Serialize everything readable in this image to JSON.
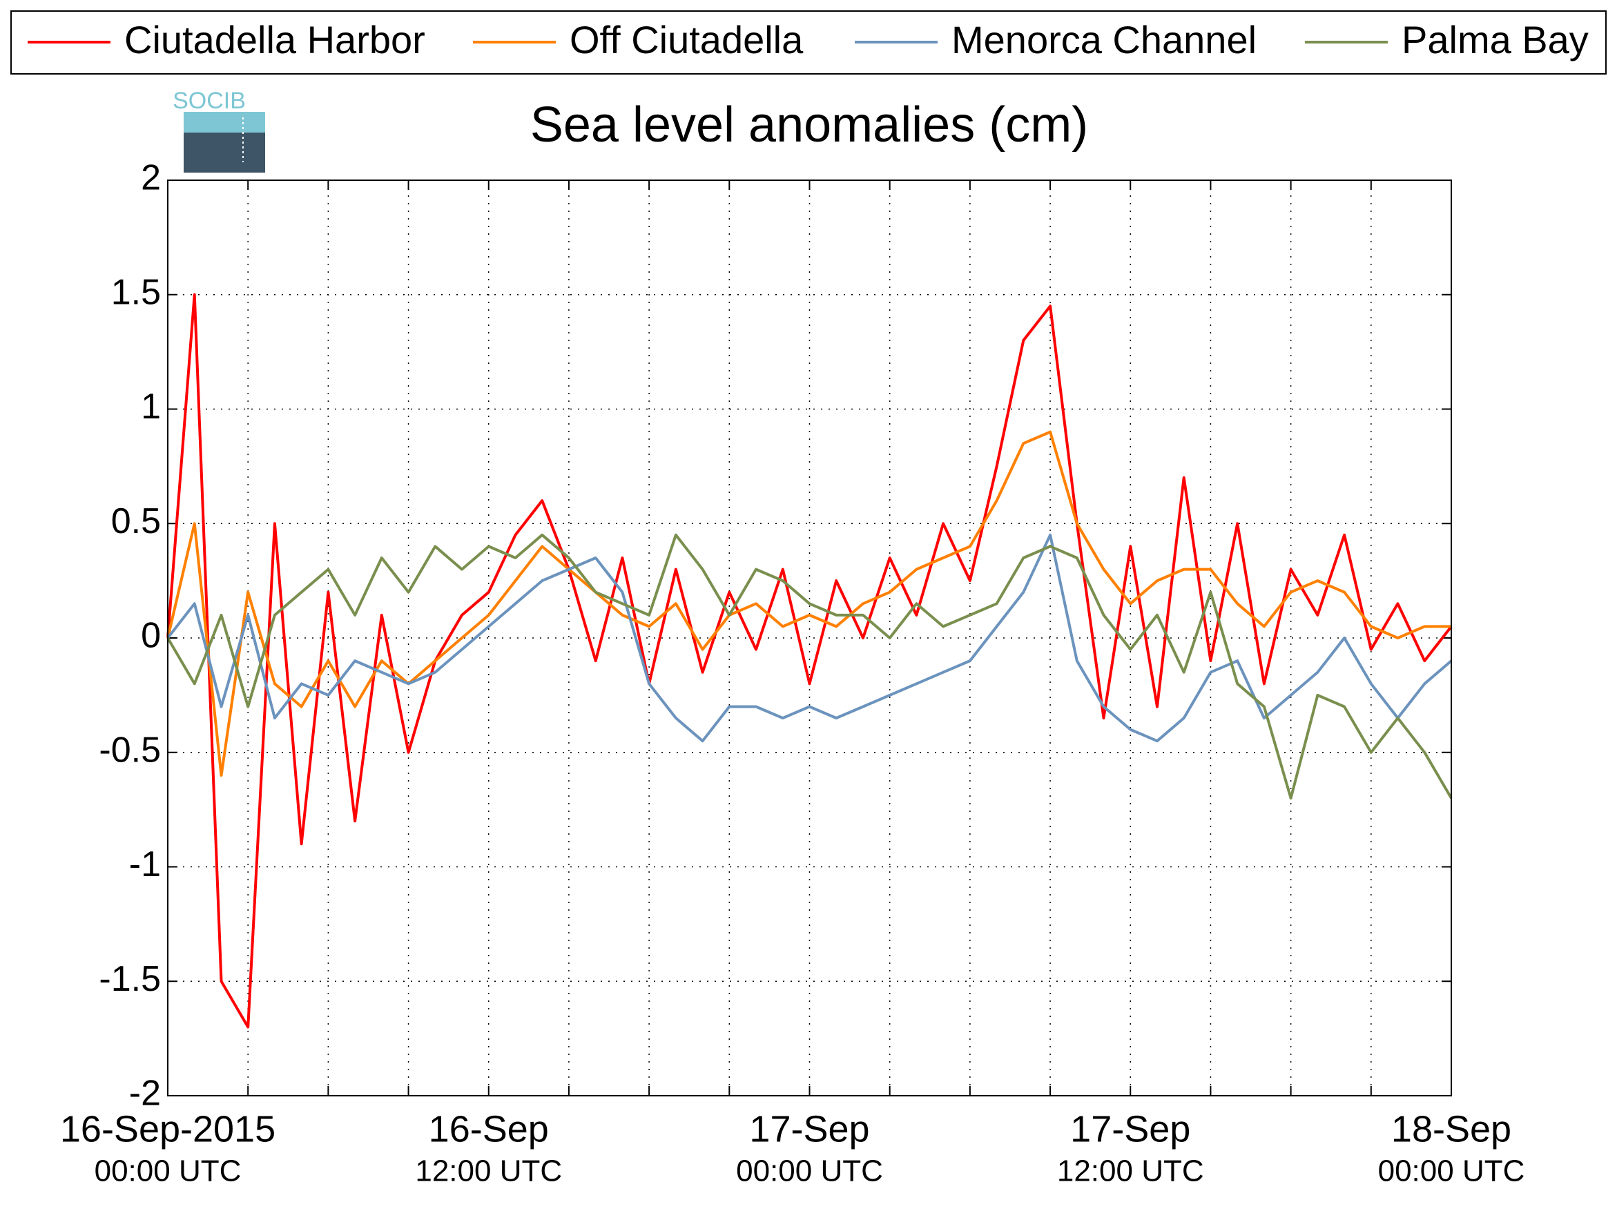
{
  "chart_data": {
    "type": "line",
    "title": "Sea level anomalies (cm)",
    "logo_text": "SOCIB",
    "x": [
      0,
      1,
      2,
      3,
      4,
      5,
      6,
      7,
      8,
      9,
      10,
      11,
      12,
      13,
      14,
      15,
      16,
      17,
      18,
      19,
      20,
      21,
      22,
      23,
      24,
      25,
      26,
      27,
      28,
      29,
      30,
      31,
      32,
      33,
      34,
      35,
      36,
      37,
      38,
      39,
      40,
      41,
      42,
      43,
      44,
      45,
      46,
      47,
      48
    ],
    "series": [
      {
        "name": "Ciutadella Harbor",
        "color": "#ff0000",
        "values": [
          0,
          1.5,
          -1.5,
          -1.7,
          0.5,
          -0.9,
          0.2,
          -0.8,
          0.1,
          -0.5,
          -0.1,
          0.1,
          0.2,
          0.45,
          0.6,
          0.3,
          -0.1,
          0.35,
          -0.2,
          0.3,
          -0.15,
          0.2,
          -0.05,
          0.3,
          -0.2,
          0.25,
          0,
          0.35,
          0.1,
          0.5,
          0.25,
          0.75,
          1.3,
          1.45,
          0.5,
          -0.35,
          0.4,
          -0.3,
          0.7,
          -0.1,
          0.5,
          -0.2,
          0.3,
          0.1,
          0.45,
          -0.05,
          0.15,
          -0.1,
          0.05
        ]
      },
      {
        "name": "Off Ciutadella",
        "color": "#ff8000",
        "values": [
          0,
          0.5,
          -0.6,
          0.2,
          -0.2,
          -0.3,
          -0.1,
          -0.3,
          -0.1,
          -0.2,
          -0.1,
          0,
          0.1,
          0.25,
          0.4,
          0.3,
          0.2,
          0.1,
          0.05,
          0.15,
          -0.05,
          0.1,
          0.15,
          0.05,
          0.1,
          0.05,
          0.15,
          0.2,
          0.3,
          0.35,
          0.4,
          0.6,
          0.85,
          0.9,
          0.5,
          0.3,
          0.15,
          0.25,
          0.3,
          0.3,
          0.15,
          0.05,
          0.2,
          0.25,
          0.2,
          0.05,
          0,
          0.05,
          0.05
        ]
      },
      {
        "name": "Menorca Channel",
        "color": "#6b93bd",
        "values": [
          0,
          0.15,
          -0.3,
          0.1,
          -0.35,
          -0.2,
          -0.25,
          -0.1,
          -0.15,
          -0.2,
          -0.15,
          -0.05,
          0.05,
          0.15,
          0.25,
          0.3,
          0.35,
          0.2,
          -0.2,
          -0.35,
          -0.45,
          -0.3,
          -0.3,
          -0.35,
          -0.3,
          -0.35,
          -0.3,
          -0.25,
          -0.2,
          -0.15,
          -0.1,
          0.05,
          0.2,
          0.45,
          -0.1,
          -0.3,
          -0.4,
          -0.45,
          -0.35,
          -0.15,
          -0.1,
          -0.35,
          -0.25,
          -0.15,
          0,
          -0.2,
          -0.35,
          -0.2,
          -0.1
        ]
      },
      {
        "name": "Palma Bay",
        "color": "#7a8f4e",
        "values": [
          0,
          -0.2,
          0.1,
          -0.3,
          0.1,
          0.2,
          0.3,
          0.1,
          0.35,
          0.2,
          0.4,
          0.3,
          0.4,
          0.35,
          0.45,
          0.35,
          0.2,
          0.15,
          0.1,
          0.45,
          0.3,
          0.1,
          0.3,
          0.25,
          0.15,
          0.1,
          0.1,
          0,
          0.15,
          0.05,
          0.1,
          0.15,
          0.35,
          0.4,
          0.35,
          0.1,
          -0.05,
          0.1,
          -0.15,
          0.2,
          -0.2,
          -0.3,
          -0.7,
          -0.25,
          -0.3,
          -0.5,
          -0.35,
          -0.5,
          -0.7
        ]
      }
    ],
    "xlim": [
      0,
      48
    ],
    "xticks": [
      {
        "value": 0,
        "label": "16-Sep-2015",
        "sublabel": "00:00 UTC"
      },
      {
        "value": 12,
        "label": "16-Sep",
        "sublabel": "12:00 UTC"
      },
      {
        "value": 24,
        "label": "17-Sep",
        "sublabel": "00:00 UTC"
      },
      {
        "value": 36,
        "label": "17-Sep",
        "sublabel": "12:00 UTC"
      },
      {
        "value": 48,
        "label": "18-Sep",
        "sublabel": "00:00 UTC"
      }
    ],
    "xminorticks": [
      3,
      6,
      9,
      15,
      18,
      21,
      27,
      30,
      33,
      39,
      42,
      45
    ],
    "ylim": [
      -2,
      2
    ],
    "yticks": [
      -2,
      -1.5,
      -1,
      -0.5,
      0,
      0.5,
      1,
      1.5,
      2
    ],
    "grid": true
  }
}
